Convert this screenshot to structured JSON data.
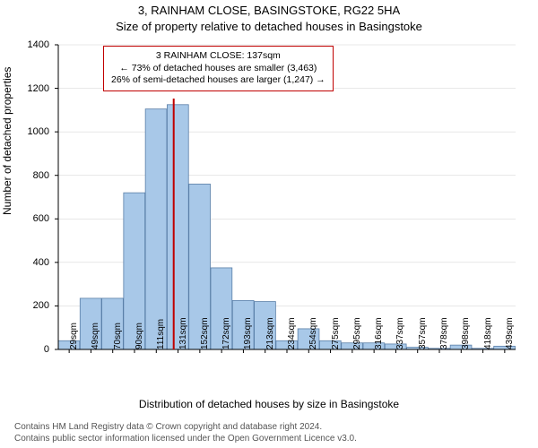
{
  "title_main": "3, RAINHAM CLOSE, BASINGSTOKE, RG22 5HA",
  "title_sub": "Size of property relative to detached houses in Basingstoke",
  "y_axis_label": "Number of detached properties",
  "x_axis_label": "Distribution of detached houses by size in Basingstoke",
  "footer_line1": "Contains HM Land Registry data © Crown copyright and database right 2024.",
  "footer_line2": "Contains public sector information licensed under the Open Government Licence v3.0.",
  "annotation": {
    "line1": "3 RAINHAM CLOSE: 137sqm",
    "line2": "← 73% of detached houses are smaller (3,463)",
    "line3": "26% of semi-detached houses are larger (1,247) →"
  },
  "chart": {
    "type": "histogram",
    "ylim": [
      0,
      1400
    ],
    "ytick_step": 200,
    "x_categories": [
      "29sqm",
      "49sqm",
      "70sqm",
      "90sqm",
      "111sqm",
      "131sqm",
      "152sqm",
      "172sqm",
      "193sqm",
      "213sqm",
      "234sqm",
      "254sqm",
      "275sqm",
      "295sqm",
      "316sqm",
      "337sqm",
      "357sqm",
      "378sqm",
      "398sqm",
      "418sqm",
      "439sqm"
    ],
    "values": [
      40,
      235,
      235,
      720,
      1105,
      1125,
      760,
      375,
      225,
      220,
      40,
      95,
      40,
      30,
      30,
      25,
      10,
      5,
      20,
      5,
      15
    ],
    "bar_fill": "#a8c8e8",
    "bar_stroke": "#5a7fa8",
    "grid_color": "#d0d0d0",
    "marker_value_index": 5,
    "marker_color": "#c00000",
    "background_color": "#ffffff",
    "title_fontsize": 13,
    "label_fontsize": 12,
    "tick_fontsize": 11
  }
}
